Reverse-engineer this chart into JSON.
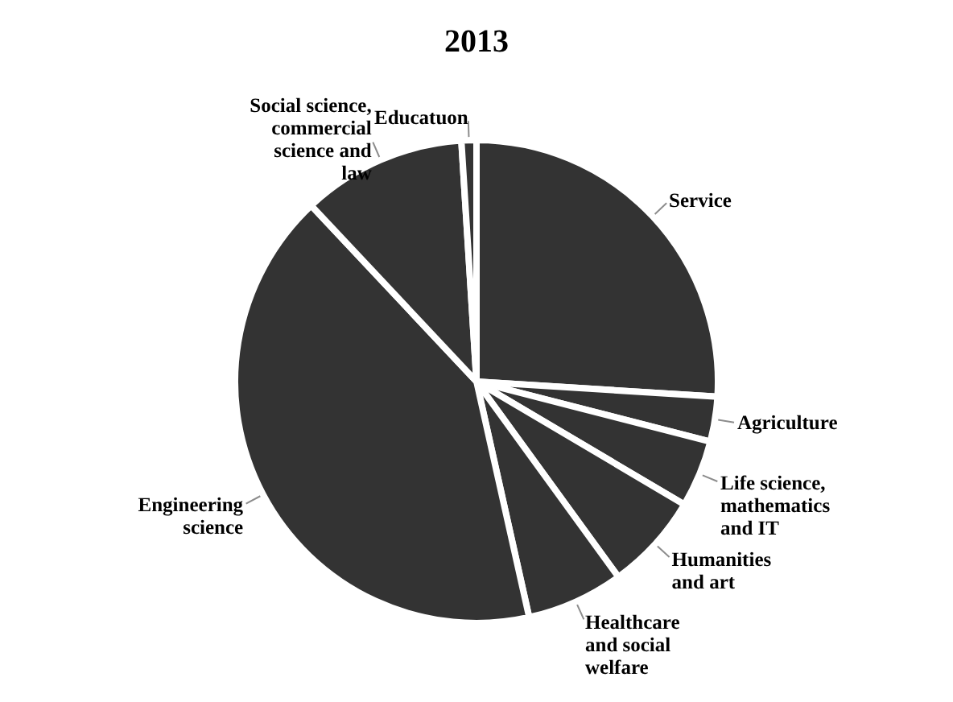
{
  "chart_data": {
    "type": "pie",
    "title": "2013",
    "categories": [
      "Service",
      "Agriculture",
      "Life science, mathematics and IT",
      "Humanities and art",
      "Healthcare and social welfare",
      "Engineering science",
      "Social science, commercial science and law",
      "Educatuon"
    ],
    "values": [
      26,
      3,
      4.5,
      6.5,
      6.5,
      41.5,
      11,
      1
    ],
    "colors": [
      "#333333",
      "#333333",
      "#333333",
      "#333333",
      "#333333",
      "#333333",
      "#333333",
      "#333333"
    ],
    "legend": false
  }
}
